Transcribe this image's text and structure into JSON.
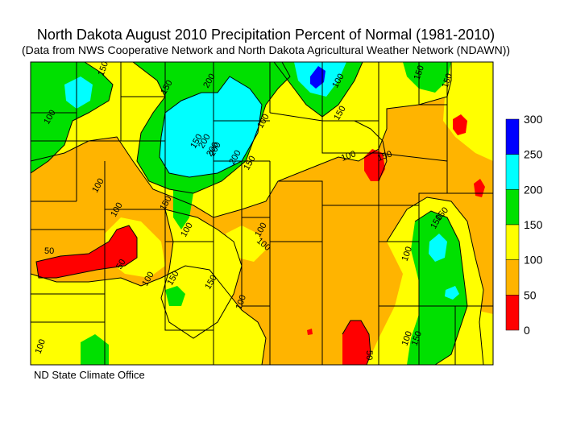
{
  "title": "North Dakota August 2010 Precipitation Percent of Normal (1981-2010)",
  "subtitle": "(Data from NWS Cooperative Network and North Dakota Agricultural Weather Network (NDAWN))",
  "credit": "ND State Climate Office",
  "legend": {
    "ticks": [
      "300",
      "250",
      "200",
      "150",
      "100",
      "50",
      "0"
    ],
    "classes": [
      {
        "range": "250-300",
        "color": "#0000ff"
      },
      {
        "range": "200-250",
        "color": "#00ffff"
      },
      {
        "range": "150-200",
        "color": "#00e000"
      },
      {
        "range": "100-150",
        "color": "#ffff00"
      },
      {
        "range": "50-100",
        "color": "#ffb400"
      },
      {
        "range": "0-50",
        "color": "#ff0000"
      }
    ]
  },
  "contour_labels": [
    "150",
    "200",
    "150",
    "100",
    "200",
    "150",
    "100",
    "200",
    "200",
    "200",
    "150",
    "100",
    "150",
    "100",
    "150",
    "100",
    "150",
    "50",
    "100",
    "150",
    "100",
    "150",
    "100",
    "150",
    "150",
    "100",
    "50",
    "100",
    "100",
    "100",
    "150",
    "150",
    "50",
    "100",
    "150",
    "100"
  ]
}
